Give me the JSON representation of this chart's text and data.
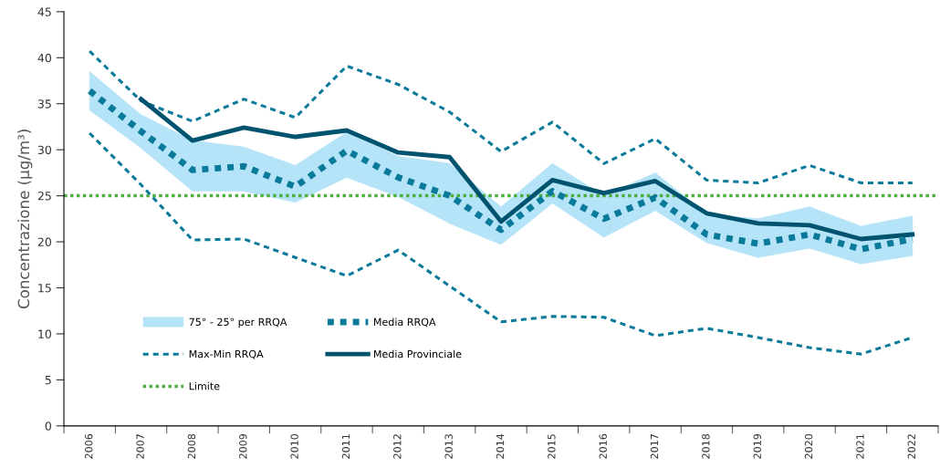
{
  "chart_data": {
    "type": "line",
    "ylabel": "Concentrazione (µg/m³)",
    "categories": [
      "2006",
      "2007",
      "2008",
      "2009",
      "2010",
      "2011",
      "2012",
      "2013",
      "2014",
      "2015",
      "2016",
      "2017",
      "2018",
      "2019",
      "2020",
      "2021",
      "2022"
    ],
    "ylim": [
      0,
      45
    ],
    "yticks": [
      0,
      5,
      10,
      15,
      20,
      25,
      30,
      35,
      40,
      45
    ],
    "grid": false,
    "legend": "bottom left",
    "annotations": [
      "75° - 25° per RRQA"
    ],
    "series": [
      {
        "name": "Max-Min RRQA",
        "color": "#0a7a9a",
        "line_style": "dashed",
        "values": [
          40.7,
          35.3,
          33.1,
          35.5,
          33.5,
          39.1,
          37.1,
          34.1,
          29.8,
          33.0,
          28.5,
          31.2,
          26.7,
          26.4,
          28.3,
          26.4,
          26.4
        ]
      },
      {
        "color": "#0a7a9a",
        "line_style": "dashed",
        "values": [
          31.8,
          26.2,
          20.2,
          20.3,
          18.3,
          16.3,
          19.1,
          15.2,
          11.3,
          11.9,
          11.8,
          9.8,
          10.6,
          9.6,
          8.5,
          7.8,
          9.6
        ]
      },
      {
        "name": "Media RRQA",
        "color": "#0a7a9a",
        "line_style": "dotted",
        "values": [
          36.4,
          32.0,
          27.8,
          28.2,
          26.0,
          29.9,
          27.0,
          25.0,
          21.3,
          25.5,
          22.5,
          24.8,
          20.8,
          19.8,
          20.8,
          19.2,
          20.3
        ],
        "lower": [
          34.3,
          30.2,
          25.5,
          25.5,
          24.3,
          27.0,
          24.9,
          22.0,
          19.7,
          24.2,
          20.5,
          23.4,
          19.9,
          18.3,
          19.3,
          17.6,
          18.5
        ],
        "upper": [
          38.5,
          33.8,
          31.0,
          30.3,
          28.3,
          31.9,
          29.3,
          28.5,
          23.8,
          28.5,
          25.0,
          27.5,
          23.0,
          22.5,
          23.8,
          21.7,
          22.8
        ]
      },
      {
        "name": "Media Provinciale",
        "color": "#00536f",
        "line_style": "solid",
        "values": [
          null,
          35.5,
          31.0,
          32.4,
          31.4,
          32.1,
          29.7,
          29.2,
          22.2,
          26.7,
          25.3,
          26.6,
          23.1,
          22.0,
          21.8,
          20.3,
          20.8
        ]
      }
    ],
    "ref_lines": [
      {
        "axis": "y",
        "value": 25,
        "label": "Limite",
        "color": "#4caf3e",
        "line_style": "dotted"
      }
    ]
  }
}
